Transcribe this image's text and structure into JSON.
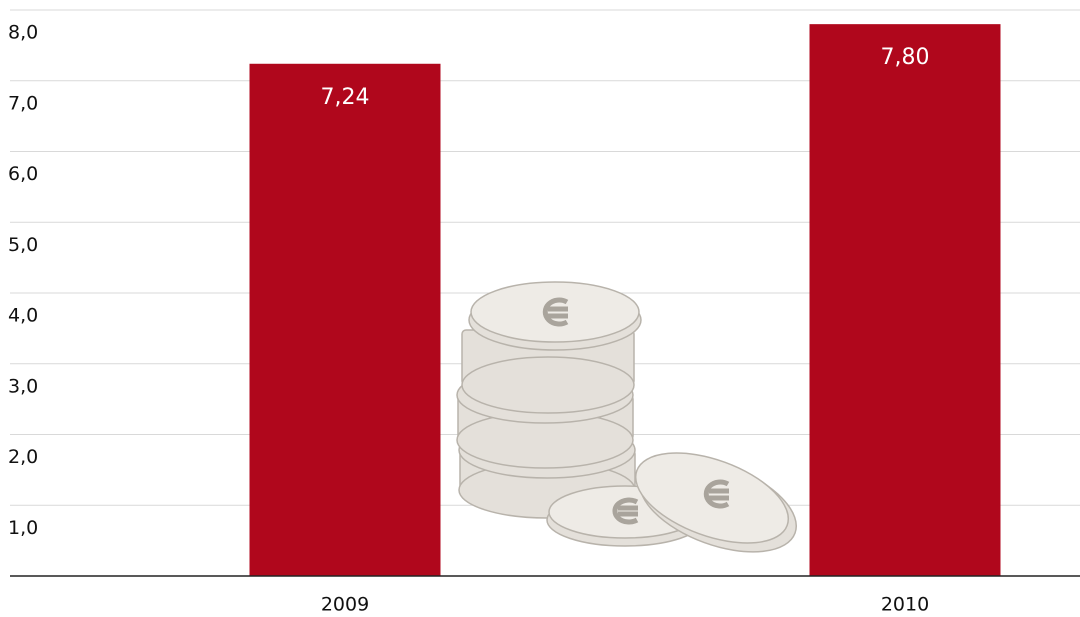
{
  "chart_data": {
    "type": "bar",
    "categories": [
      "2009",
      "2010"
    ],
    "values": [
      7.24,
      7.8
    ],
    "value_labels": [
      "7,24",
      "7,80"
    ],
    "color": "#b0071c",
    "ylim": [
      0,
      8
    ],
    "yticks": [
      {
        "value": 1,
        "label": "1,0"
      },
      {
        "value": 2,
        "label": "2,0"
      },
      {
        "value": 3,
        "label": "3,0"
      },
      {
        "value": 4,
        "label": "4,0"
      },
      {
        "value": 5,
        "label": "5,0"
      },
      {
        "value": 6,
        "label": "6,0"
      },
      {
        "value": 7,
        "label": "7,0"
      },
      {
        "value": 8,
        "label": "8,0"
      }
    ],
    "grid": true
  }
}
